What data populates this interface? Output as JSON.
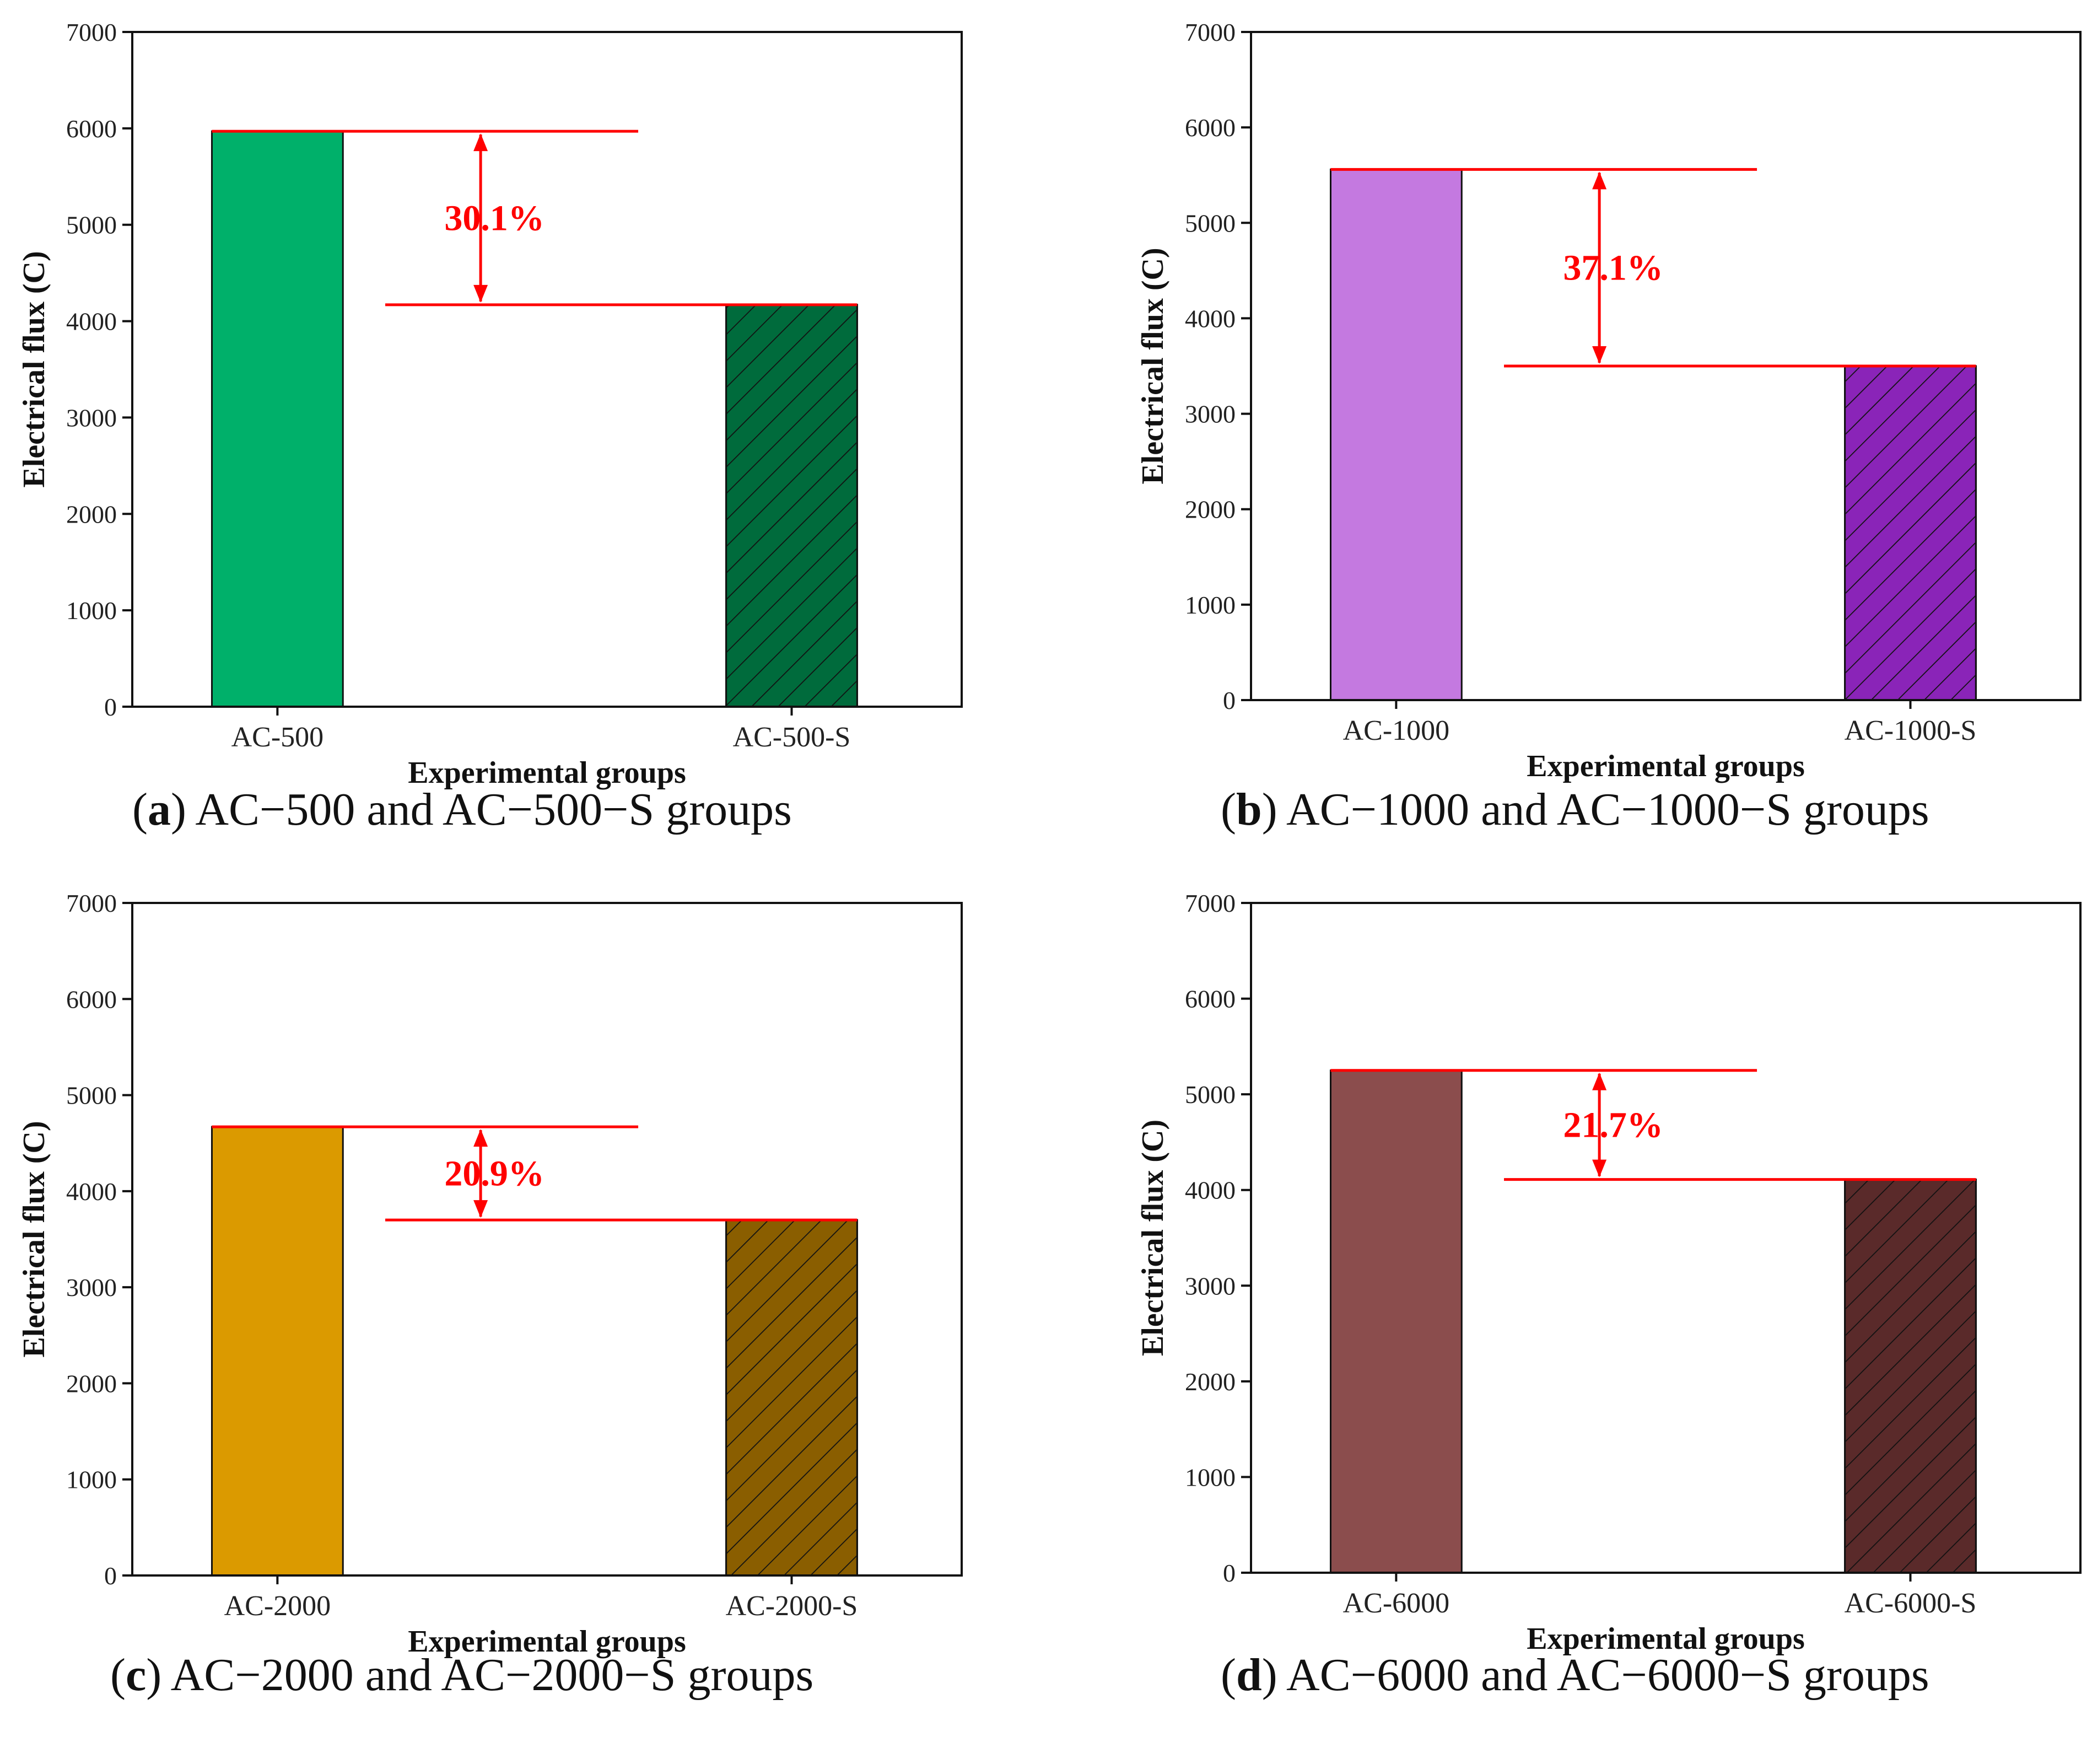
{
  "chart_data": [
    {
      "type": "bar",
      "panel_letter": "a",
      "caption": "AC−500 and AC−500−S groups",
      "categories": [
        "AC-500",
        "AC-500-S"
      ],
      "values": [
        5970,
        4170
      ],
      "colors": [
        "#00b06a",
        "#006b3c"
      ],
      "hatched": [
        false,
        true
      ],
      "annotation": "30.1%",
      "xlabel": "Experimental groups",
      "ylabel": "Electrical flux (C)",
      "ylim": [
        0,
        7000
      ],
      "yticks": [
        "0",
        "1000",
        "2000",
        "3000",
        "4000",
        "5000",
        "6000",
        "7000"
      ]
    },
    {
      "type": "bar",
      "panel_letter": "b",
      "caption": "AC−1000 and AC−1000−S groups",
      "categories": [
        "AC-1000",
        "AC-1000-S"
      ],
      "values": [
        5560,
        3500
      ],
      "colors": [
        "#c479e0",
        "#8a24b8"
      ],
      "hatched": [
        false,
        true
      ],
      "annotation": "37.1%",
      "xlabel": "Experimental groups",
      "ylabel": "Electrical flux (C)",
      "ylim": [
        0,
        7000
      ],
      "yticks": [
        "0",
        "1000",
        "2000",
        "3000",
        "4000",
        "5000",
        "6000",
        "7000"
      ]
    },
    {
      "type": "bar",
      "panel_letter": "c",
      "caption": "AC−2000 and AC−2000−S groups",
      "categories": [
        "AC-2000",
        "AC-2000-S"
      ],
      "values": [
        4670,
        3700
      ],
      "colors": [
        "#db9a00",
        "#8a5e00"
      ],
      "hatched": [
        false,
        true
      ],
      "annotation": "20.9%",
      "xlabel": "Experimental groups",
      "ylabel": "Electrical flux (C)",
      "ylim": [
        0,
        7000
      ],
      "yticks": [
        "0",
        "1000",
        "2000",
        "3000",
        "4000",
        "5000",
        "6000",
        "7000"
      ]
    },
    {
      "type": "bar",
      "panel_letter": "d",
      "caption": "AC−6000 and AC−6000−S groups",
      "categories": [
        "AC-6000",
        "AC-6000-S"
      ],
      "values": [
        5250,
        4110
      ],
      "colors": [
        "#8b4d4d",
        "#5a2a2a"
      ],
      "hatched": [
        false,
        true
      ],
      "annotation": "21.7%",
      "xlabel": "Experimental groups",
      "ylabel": "Electrical flux (C)",
      "ylim": [
        0,
        7000
      ],
      "yticks": [
        "0",
        "1000",
        "2000",
        "3000",
        "4000",
        "5000",
        "6000",
        "7000"
      ]
    }
  ]
}
